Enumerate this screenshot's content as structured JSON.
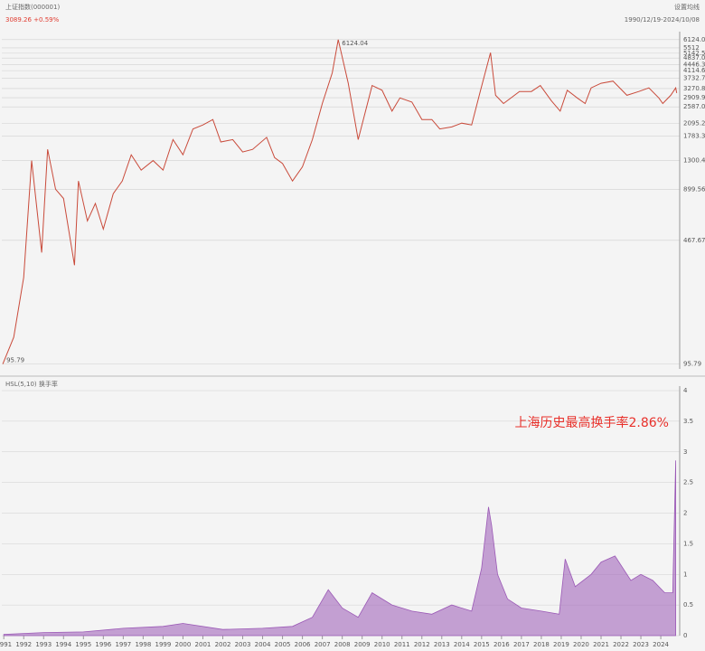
{
  "header": {
    "name": "上证指数(000001)",
    "quote": "3089.26 +0.59%",
    "settings": "设置均线",
    "range": "1990/12/19-2024/10/08"
  },
  "chart_data": [
    {
      "type": "line",
      "log_scale": true,
      "color": "#c94a3a",
      "xlim": [
        1990.9,
        2024.95
      ],
      "ylim": [
        90,
        6400
      ],
      "yticks": [
        95.79,
        467.67,
        899.56,
        1300.44,
        1783.34,
        2095.21,
        2587.09,
        2909.97,
        3270.86,
        3732.74,
        4114.67,
        4446.39,
        4837.05,
        5142.53,
        5512.0,
        6124.04
      ],
      "annotations": [
        {
          "text": "6124.04",
          "x": 2007.8,
          "y": 6124.04
        },
        {
          "text": "95.79",
          "x": 1990.95,
          "y": 95.79
        }
      ],
      "x": [
        1990.95,
        1991.5,
        1992.0,
        1992.4,
        1992.9,
        1993.2,
        1993.6,
        1994.0,
        1994.55,
        1994.75,
        1995.2,
        1995.6,
        1996.0,
        1996.5,
        1996.95,
        1997.4,
        1997.9,
        1998.5,
        1999.0,
        1999.5,
        2000.0,
        2000.5,
        2001.0,
        2001.5,
        2001.9,
        2002.5,
        2003.0,
        2003.5,
        2004.2,
        2004.6,
        2005.0,
        2005.5,
        2006.0,
        2006.5,
        2007.0,
        2007.5,
        2007.8,
        2008.3,
        2008.8,
        2009.5,
        2010.0,
        2010.5,
        2010.9,
        2011.5,
        2012.0,
        2012.5,
        2012.9,
        2013.5,
        2014.0,
        2014.5,
        2014.95,
        2015.45,
        2015.7,
        2016.1,
        2016.9,
        2017.5,
        2017.95,
        2018.5,
        2018.95,
        2019.3,
        2019.8,
        2020.2,
        2020.5,
        2021.0,
        2021.6,
        2022.3,
        2022.9,
        2023.4,
        2023.9,
        2024.1,
        2024.5,
        2024.75,
        2024.8
      ],
      "values": [
        95.79,
        135,
        290,
        1300,
        400,
        1500,
        900,
        800,
        340,
        1000,
        600,
        750,
        540,
        850,
        1000,
        1400,
        1150,
        1300,
        1150,
        1700,
        1400,
        1950,
        2050,
        2200,
        1650,
        1700,
        1450,
        1500,
        1750,
        1350,
        1250,
        1000,
        1200,
        1700,
        2700,
        4000,
        6124.04,
        3500,
        1700,
        3400,
        3200,
        2450,
        2900,
        2750,
        2200,
        2200,
        1950,
        2000,
        2100,
        2050,
        3200,
        5178,
        3000,
        2700,
        3150,
        3150,
        3400,
        2800,
        2450,
        3200,
        2900,
        2700,
        3300,
        3500,
        3600,
        3000,
        3150,
        3300,
        2900,
        2700,
        3000,
        3300,
        3089.26
      ],
      "xticks": [
        1991,
        1992,
        1993,
        1994,
        1995,
        1996,
        1997,
        1998,
        1999,
        2000,
        2001,
        2002,
        2003,
        2004,
        2005,
        2006,
        2007,
        2008,
        2009,
        2010,
        2011,
        2012,
        2013,
        2014,
        2015,
        2016,
        2017,
        2018,
        2019,
        2020,
        2021,
        2022,
        2023,
        2024
      ]
    },
    {
      "type": "area",
      "title": "HSL(5,10) 换手率",
      "color": "#9b59b6",
      "annotation": "上海历史最高换手率2.86%",
      "xlim": [
        1990.9,
        2024.95
      ],
      "ylim": [
        0,
        4
      ],
      "yticks": [
        0,
        0.5,
        1,
        1.5,
        2,
        2.5,
        3,
        3.5,
        4
      ],
      "x": [
        1991,
        1993,
        1995,
        1997,
        1999,
        2000,
        2002,
        2004,
        2005.5,
        2006.5,
        2007.3,
        2008.0,
        2008.8,
        2009.5,
        2010.5,
        2011.5,
        2012.5,
        2013.5,
        2014.5,
        2015.0,
        2015.35,
        2015.5,
        2015.8,
        2016.3,
        2017.0,
        2018.0,
        2018.9,
        2019.2,
        2019.7,
        2020.5,
        2021.0,
        2021.7,
        2022.5,
        2023.0,
        2023.6,
        2024.2,
        2024.6,
        2024.75
      ],
      "values": [
        0.02,
        0.05,
        0.06,
        0.12,
        0.15,
        0.2,
        0.1,
        0.12,
        0.15,
        0.3,
        0.75,
        0.45,
        0.3,
        0.7,
        0.5,
        0.4,
        0.35,
        0.5,
        0.4,
        1.1,
        2.1,
        1.8,
        1.0,
        0.6,
        0.45,
        0.4,
        0.35,
        1.25,
        0.8,
        1.0,
        1.2,
        1.3,
        0.9,
        1.0,
        0.9,
        0.7,
        0.7,
        2.86
      ]
    }
  ]
}
